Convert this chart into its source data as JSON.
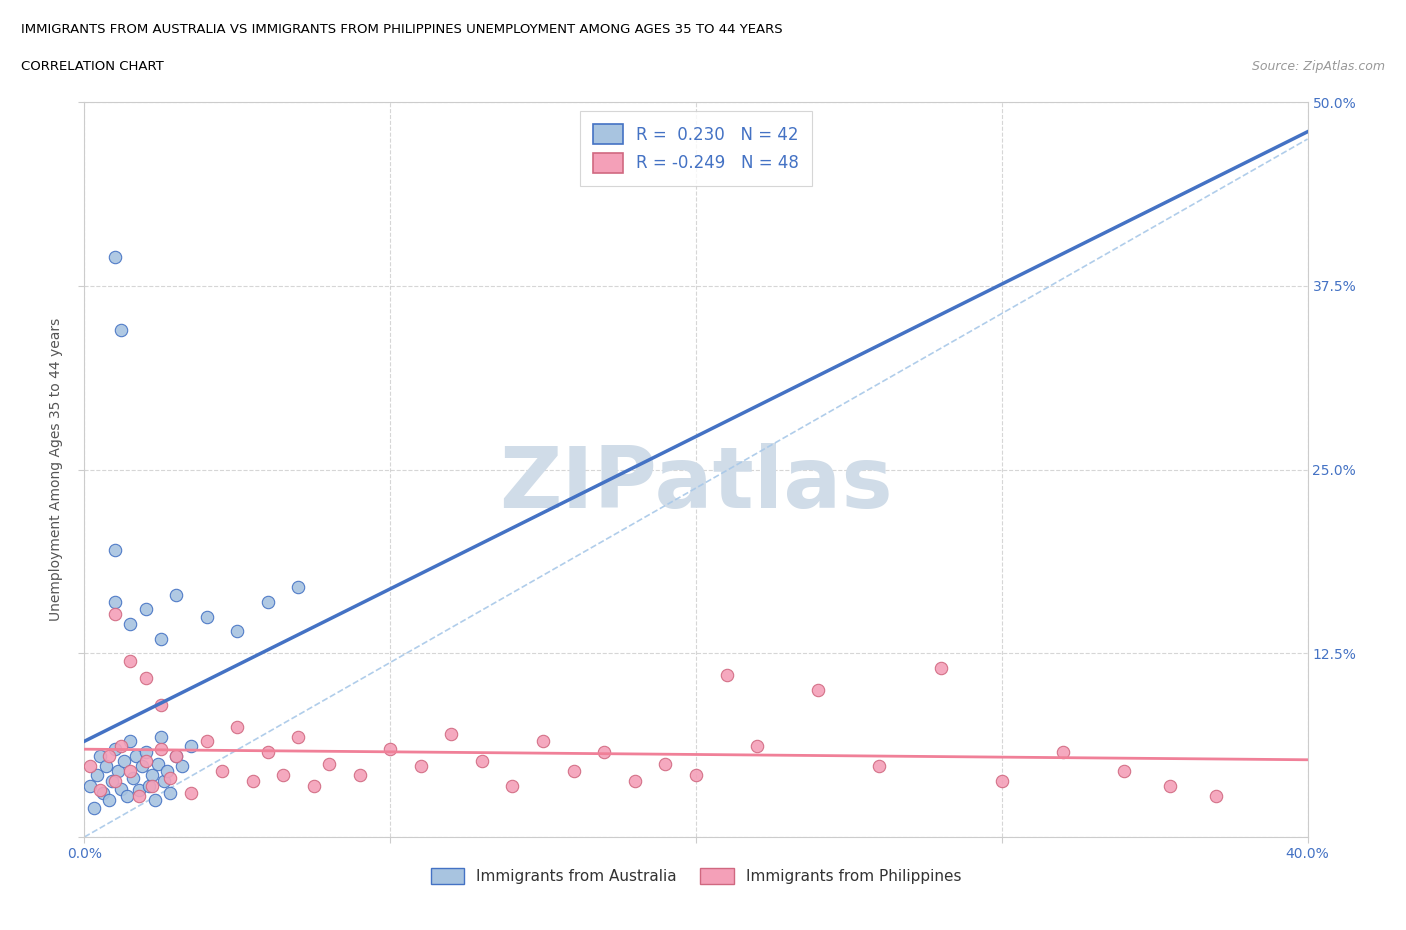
{
  "title_line1": "IMMIGRANTS FROM AUSTRALIA VS IMMIGRANTS FROM PHILIPPINES UNEMPLOYMENT AMONG AGES 35 TO 44 YEARS",
  "title_line2": "CORRELATION CHART",
  "source_text": "Source: ZipAtlas.com",
  "ylabel": "Unemployment Among Ages 35 to 44 years",
  "x_min": 0.0,
  "x_max": 0.4,
  "y_min": 0.0,
  "y_max": 0.5,
  "x_ticks": [
    0.0,
    0.1,
    0.2,
    0.3,
    0.4
  ],
  "x_tick_labels": [
    "0.0%",
    "",
    "",
    "",
    "40.0%"
  ],
  "y_ticks": [
    0.0,
    0.125,
    0.25,
    0.375,
    0.5
  ],
  "y_tick_labels_right": [
    "",
    "12.5%",
    "25.0%",
    "37.5%",
    "50.0%"
  ],
  "legend_text_aus": "R =  0.230   N = 42",
  "legend_text_phi": "R = -0.249   N = 48",
  "australia_color": "#a8c4e0",
  "philippines_color": "#f4a0b8",
  "trendline_aus_color": "#4472c4",
  "trendline_phi_color": "#f08098",
  "dashed_line_color": "#a8c4e0",
  "watermark_color": "#d0dce8",
  "grid_color": "#cccccc",
  "aus_scatter_x": [
    0.002,
    0.003,
    0.004,
    0.005,
    0.006,
    0.007,
    0.008,
    0.009,
    0.01,
    0.011,
    0.012,
    0.013,
    0.014,
    0.015,
    0.016,
    0.017,
    0.018,
    0.019,
    0.02,
    0.021,
    0.022,
    0.023,
    0.024,
    0.025,
    0.026,
    0.027,
    0.028,
    0.03,
    0.032,
    0.035,
    0.01,
    0.01,
    0.015,
    0.02,
    0.025,
    0.03,
    0.04,
    0.05,
    0.06,
    0.07,
    0.01,
    0.012
  ],
  "aus_scatter_y": [
    0.035,
    0.02,
    0.042,
    0.055,
    0.03,
    0.048,
    0.025,
    0.038,
    0.06,
    0.045,
    0.033,
    0.052,
    0.028,
    0.065,
    0.04,
    0.055,
    0.032,
    0.048,
    0.058,
    0.035,
    0.042,
    0.025,
    0.05,
    0.068,
    0.038,
    0.045,
    0.03,
    0.055,
    0.048,
    0.062,
    0.195,
    0.16,
    0.145,
    0.155,
    0.135,
    0.165,
    0.15,
    0.14,
    0.16,
    0.17,
    0.395,
    0.345
  ],
  "phi_scatter_x": [
    0.002,
    0.005,
    0.008,
    0.01,
    0.012,
    0.015,
    0.018,
    0.02,
    0.022,
    0.025,
    0.028,
    0.03,
    0.035,
    0.04,
    0.045,
    0.05,
    0.055,
    0.06,
    0.065,
    0.07,
    0.075,
    0.08,
    0.09,
    0.1,
    0.11,
    0.12,
    0.13,
    0.14,
    0.15,
    0.16,
    0.17,
    0.18,
    0.19,
    0.2,
    0.21,
    0.22,
    0.24,
    0.26,
    0.28,
    0.3,
    0.32,
    0.34,
    0.355,
    0.37,
    0.01,
    0.015,
    0.02,
    0.025
  ],
  "phi_scatter_y": [
    0.048,
    0.032,
    0.055,
    0.038,
    0.062,
    0.045,
    0.028,
    0.052,
    0.035,
    0.06,
    0.04,
    0.055,
    0.03,
    0.065,
    0.045,
    0.075,
    0.038,
    0.058,
    0.042,
    0.068,
    0.035,
    0.05,
    0.042,
    0.06,
    0.048,
    0.07,
    0.052,
    0.035,
    0.065,
    0.045,
    0.058,
    0.038,
    0.05,
    0.042,
    0.11,
    0.062,
    0.1,
    0.048,
    0.115,
    0.038,
    0.058,
    0.045,
    0.035,
    0.028,
    0.152,
    0.12,
    0.108,
    0.09
  ]
}
